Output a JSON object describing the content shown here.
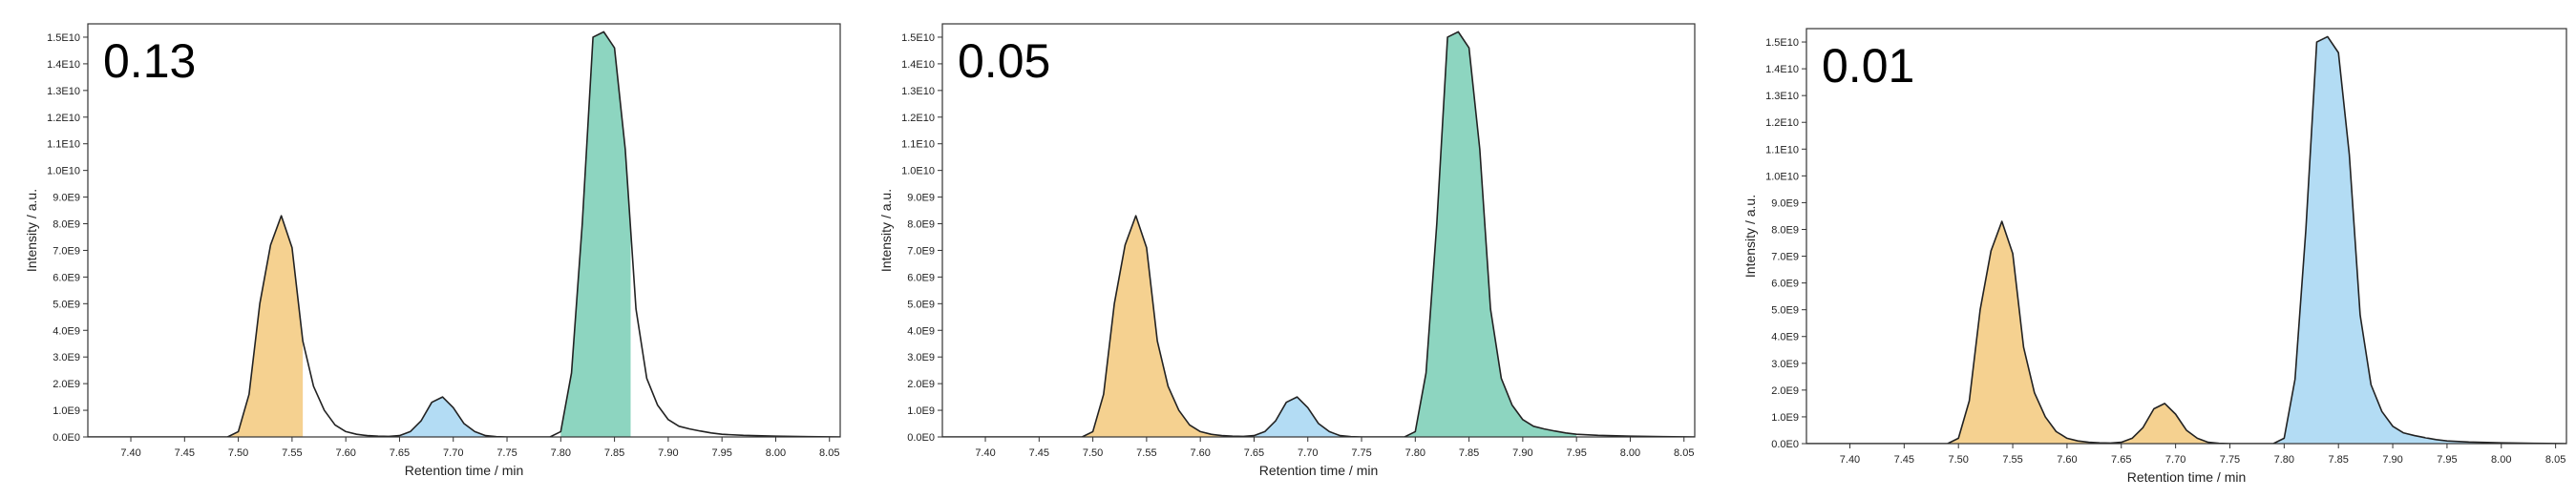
{
  "colors": {
    "orange": "#f5d190",
    "blue": "#b3dcf4",
    "green": "#8dd5c0",
    "line": "#222222"
  },
  "chart_data": [
    {
      "type": "area",
      "label": "0.13",
      "xlabel": "Retention time / min",
      "ylabel": "Intensity / a.u.",
      "xlim": [
        7.36,
        8.06
      ],
      "ylim": [
        0,
        15500000000.0
      ],
      "xticks": [
        7.4,
        7.45,
        7.5,
        7.55,
        7.6,
        7.65,
        7.7,
        7.75,
        7.8,
        7.85,
        7.9,
        7.95,
        8.0,
        8.05
      ],
      "xtick_labels": [
        "7.40",
        "7.45",
        "7.50",
        "7.55",
        "7.60",
        "7.65",
        "7.70",
        "7.75",
        "7.80",
        "7.85",
        "7.90",
        "7.95",
        "8.00",
        "8.05"
      ],
      "yticks": [
        0,
        1000000000.0,
        2000000000.0,
        3000000000.0,
        4000000000.0,
        5000000000.0,
        6000000000.0,
        7000000000.0,
        8000000000.0,
        9000000000.0,
        10000000000.0,
        11000000000.0,
        12000000000.0,
        13000000000.0,
        14000000000.0,
        15000000000.0
      ],
      "ytick_labels": [
        "0.0E0",
        "1.0E9",
        "2.0E9",
        "3.0E9",
        "4.0E9",
        "5.0E9",
        "6.0E9",
        "7.0E9",
        "8.0E9",
        "9.0E9",
        "1.0E10",
        "1.1E10",
        "1.2E10",
        "1.3E10",
        "1.4E10",
        "1.5E10"
      ],
      "x": [
        7.36,
        7.4,
        7.45,
        7.49,
        7.5,
        7.51,
        7.52,
        7.53,
        7.54,
        7.55,
        7.56,
        7.57,
        7.58,
        7.59,
        7.6,
        7.61,
        7.62,
        7.63,
        7.64,
        7.65,
        7.66,
        7.67,
        7.68,
        7.69,
        7.7,
        7.71,
        7.72,
        7.73,
        7.74,
        7.75,
        7.76,
        7.77,
        7.78,
        7.79,
        7.8,
        7.81,
        7.82,
        7.83,
        7.84,
        7.85,
        7.86,
        7.87,
        7.88,
        7.89,
        7.9,
        7.91,
        7.92,
        7.93,
        7.94,
        7.95,
        7.97,
        8.0,
        8.03,
        8.06
      ],
      "y": [
        0,
        0,
        0,
        0,
        200000000.0,
        1600000000.0,
        5000000000.0,
        7200000000.0,
        8300000000.0,
        7100000000.0,
        3600000000.0,
        1900000000.0,
        1000000000.0,
        450000000.0,
        200000000.0,
        100000000.0,
        50000000.0,
        30000000.0,
        20000000.0,
        50000000.0,
        200000000.0,
        600000000.0,
        1300000000.0,
        1500000000.0,
        1100000000.0,
        500000000.0,
        200000000.0,
        50000000.0,
        10000000.0,
        0,
        0,
        0,
        0,
        0,
        200000000.0,
        2400000000.0,
        8000000000.0,
        15000000000.0,
        15200000000.0,
        14600000000.0,
        10800000000.0,
        4800000000.0,
        2200000000.0,
        1200000000.0,
        650000000.0,
        400000000.0,
        300000000.0,
        220000000.0,
        150000000.0,
        100000000.0,
        60000000.0,
        30000000.0,
        10000000.0,
        0
      ],
      "fills": [
        {
          "color": "orange",
          "from": 7.49,
          "to": 7.56
        },
        {
          "color": "blue",
          "from": 7.65,
          "to": 7.735
        },
        {
          "color": "green",
          "from": 7.8,
          "to": 7.865
        }
      ]
    },
    {
      "type": "area",
      "label": "0.05",
      "xlabel": "Retention time / min",
      "ylabel": "Intensity / a.u.",
      "xlim": [
        7.36,
        8.06
      ],
      "ylim": [
        0,
        15500000000.0
      ],
      "xticks": [
        7.4,
        7.45,
        7.5,
        7.55,
        7.6,
        7.65,
        7.7,
        7.75,
        7.8,
        7.85,
        7.9,
        7.95,
        8.0,
        8.05
      ],
      "xtick_labels": [
        "7.40",
        "7.45",
        "7.50",
        "7.55",
        "7.60",
        "7.65",
        "7.70",
        "7.75",
        "7.80",
        "7.85",
        "7.90",
        "7.95",
        "8.00",
        "8.05"
      ],
      "yticks": [
        0,
        1000000000.0,
        2000000000.0,
        3000000000.0,
        4000000000.0,
        5000000000.0,
        6000000000.0,
        7000000000.0,
        8000000000.0,
        9000000000.0,
        10000000000.0,
        11000000000.0,
        12000000000.0,
        13000000000.0,
        14000000000.0,
        15000000000.0
      ],
      "ytick_labels": [
        "0.0E0",
        "1.0E9",
        "2.0E9",
        "3.0E9",
        "4.0E9",
        "5.0E9",
        "6.0E9",
        "7.0E9",
        "8.0E9",
        "9.0E9",
        "1.0E10",
        "1.1E10",
        "1.2E10",
        "1.3E10",
        "1.4E10",
        "1.5E10"
      ],
      "x": [
        7.36,
        7.4,
        7.45,
        7.49,
        7.5,
        7.51,
        7.52,
        7.53,
        7.54,
        7.55,
        7.56,
        7.57,
        7.58,
        7.59,
        7.6,
        7.61,
        7.62,
        7.63,
        7.64,
        7.65,
        7.66,
        7.67,
        7.68,
        7.69,
        7.7,
        7.71,
        7.72,
        7.73,
        7.74,
        7.75,
        7.76,
        7.77,
        7.78,
        7.79,
        7.8,
        7.81,
        7.82,
        7.83,
        7.84,
        7.85,
        7.86,
        7.87,
        7.88,
        7.89,
        7.9,
        7.91,
        7.92,
        7.93,
        7.94,
        7.95,
        7.97,
        8.0,
        8.03,
        8.06
      ],
      "y": [
        0,
        0,
        0,
        0,
        200000000.0,
        1600000000.0,
        5000000000.0,
        7200000000.0,
        8300000000.0,
        7100000000.0,
        3600000000.0,
        1900000000.0,
        1000000000.0,
        450000000.0,
        200000000.0,
        100000000.0,
        50000000.0,
        30000000.0,
        20000000.0,
        50000000.0,
        200000000.0,
        600000000.0,
        1300000000.0,
        1500000000.0,
        1100000000.0,
        500000000.0,
        200000000.0,
        50000000.0,
        10000000.0,
        0,
        0,
        0,
        0,
        0,
        200000000.0,
        2400000000.0,
        8000000000.0,
        15000000000.0,
        15200000000.0,
        14600000000.0,
        10800000000.0,
        4800000000.0,
        2200000000.0,
        1200000000.0,
        650000000.0,
        400000000.0,
        300000000.0,
        220000000.0,
        150000000.0,
        100000000.0,
        60000000.0,
        30000000.0,
        10000000.0,
        0
      ],
      "fills": [
        {
          "color": "orange",
          "from": 7.49,
          "to": 7.62
        },
        {
          "color": "blue",
          "from": 7.65,
          "to": 7.735
        },
        {
          "color": "green",
          "from": 7.79,
          "to": 7.95
        }
      ]
    },
    {
      "type": "area",
      "label": "0.01",
      "xlabel": "Retention time / min",
      "ylabel": "Intensity / a.u.",
      "xlim": [
        7.36,
        8.06
      ],
      "ylim": [
        0,
        15500000000.0
      ],
      "xticks": [
        7.4,
        7.45,
        7.5,
        7.55,
        7.6,
        7.65,
        7.7,
        7.75,
        7.8,
        7.85,
        7.9,
        7.95,
        8.0,
        8.05
      ],
      "xtick_labels": [
        "7.40",
        "7.45",
        "7.50",
        "7.55",
        "7.60",
        "7.65",
        "7.70",
        "7.75",
        "7.80",
        "7.85",
        "7.90",
        "7.95",
        "8.00",
        "8.05"
      ],
      "yticks": [
        0,
        1000000000.0,
        2000000000.0,
        3000000000.0,
        4000000000.0,
        5000000000.0,
        6000000000.0,
        7000000000.0,
        8000000000.0,
        9000000000.0,
        10000000000.0,
        11000000000.0,
        12000000000.0,
        13000000000.0,
        14000000000.0,
        15000000000.0
      ],
      "ytick_labels": [
        "0.0E0",
        "1.0E9",
        "2.0E9",
        "3.0E9",
        "4.0E9",
        "5.0E9",
        "6.0E9",
        "7.0E9",
        "8.0E9",
        "9.0E9",
        "1.0E10",
        "1.1E10",
        "1.2E10",
        "1.3E10",
        "1.4E10",
        "1.5E10"
      ],
      "x": [
        7.36,
        7.4,
        7.45,
        7.49,
        7.5,
        7.51,
        7.52,
        7.53,
        7.54,
        7.55,
        7.56,
        7.57,
        7.58,
        7.59,
        7.6,
        7.61,
        7.62,
        7.63,
        7.64,
        7.65,
        7.66,
        7.67,
        7.68,
        7.69,
        7.7,
        7.71,
        7.72,
        7.73,
        7.74,
        7.75,
        7.76,
        7.77,
        7.78,
        7.79,
        7.8,
        7.81,
        7.82,
        7.83,
        7.84,
        7.85,
        7.86,
        7.87,
        7.88,
        7.89,
        7.9,
        7.91,
        7.92,
        7.93,
        7.94,
        7.95,
        7.97,
        8.0,
        8.03,
        8.06
      ],
      "y": [
        0,
        0,
        0,
        0,
        200000000.0,
        1600000000.0,
        5000000000.0,
        7200000000.0,
        8300000000.0,
        7100000000.0,
        3600000000.0,
        1900000000.0,
        1000000000.0,
        450000000.0,
        200000000.0,
        100000000.0,
        50000000.0,
        30000000.0,
        20000000.0,
        50000000.0,
        200000000.0,
        600000000.0,
        1300000000.0,
        1500000000.0,
        1100000000.0,
        500000000.0,
        200000000.0,
        50000000.0,
        10000000.0,
        0,
        0,
        0,
        0,
        0,
        200000000.0,
        2400000000.0,
        8000000000.0,
        15000000000.0,
        15200000000.0,
        14600000000.0,
        10800000000.0,
        4800000000.0,
        2200000000.0,
        1200000000.0,
        650000000.0,
        400000000.0,
        300000000.0,
        220000000.0,
        150000000.0,
        100000000.0,
        60000000.0,
        30000000.0,
        10000000.0,
        0
      ],
      "fills": [
        {
          "color": "orange",
          "from": 7.49,
          "to": 7.62
        },
        {
          "color": "orange",
          "from": 7.65,
          "to": 7.735
        },
        {
          "color": "blue",
          "from": 7.79,
          "to": 7.98
        }
      ]
    }
  ]
}
